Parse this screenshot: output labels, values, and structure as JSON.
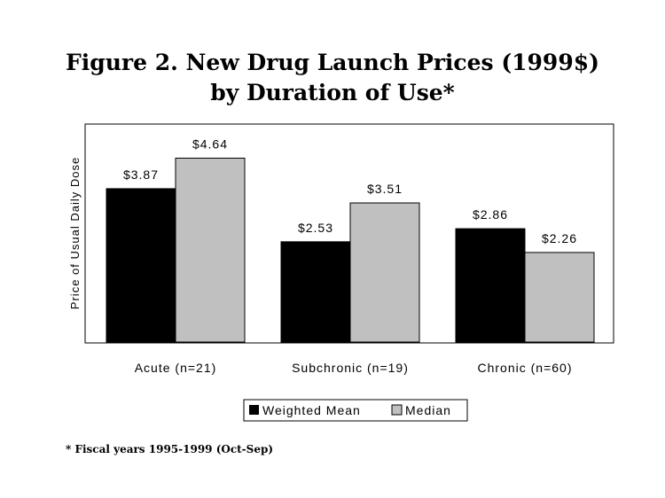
{
  "chart_data": {
    "type": "bar",
    "title_line1": "Figure 2. New Drug Launch Prices (1999$)",
    "title_line2": "by Duration of Use*",
    "ylabel": "Price of Usual Daily Dose",
    "xlabel": "",
    "categories": [
      "Acute (n=21)",
      "Subchronic (n=19)",
      "Chronic (n=60)"
    ],
    "series": [
      {
        "name": "Weighted Mean",
        "values": [
          3.87,
          2.53,
          2.86
        ],
        "labels": [
          "$3.87",
          "$2.53",
          "$2.86"
        ],
        "color": "#000000"
      },
      {
        "name": "Median",
        "values": [
          4.64,
          3.51,
          2.26
        ],
        "labels": [
          "$4.64",
          "$3.51",
          "$2.26"
        ],
        "color": "#c0c0c0"
      }
    ],
    "ylim": [
      0,
      5.5
    ],
    "grid": false,
    "legend_position": "bottom"
  },
  "footnote": "* Fiscal years 1995-1999 (Oct-Sep)"
}
